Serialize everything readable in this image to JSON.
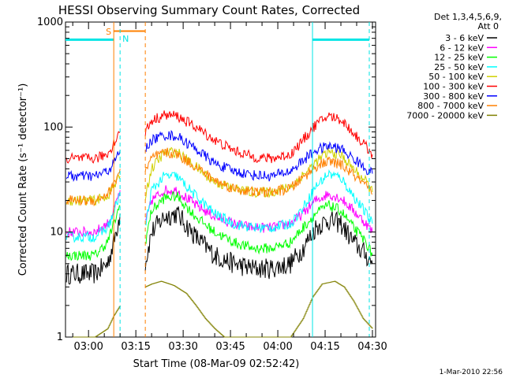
{
  "chart_data": {
    "type": "line",
    "title": "HESSI Observing Summary Count Rates, Corrected",
    "xlabel": "Start Time (08-Mar-09 02:52:42)",
    "ylabel": "Corrected Count Rate (s⁻¹ detector⁻¹)",
    "ylog": true,
    "ylim": [
      1,
      1000
    ],
    "xlim": [
      "02:52:42",
      "04:31:00"
    ],
    "y_tick_labels": [
      "1",
      "10",
      "100",
      "1000"
    ],
    "x_tick_labels": [
      "03:00",
      "03:15",
      "03:30",
      "03:45",
      "04:00",
      "04:15",
      "04:30"
    ],
    "legend_header": [
      "Det 1,3,4,5,6,9,",
      "Att 0"
    ],
    "legend_position": "outside-right",
    "timestamp": "1-Mar-2010 22:56",
    "annotations": [
      {
        "text": "S",
        "color": "#ff8000"
      },
      {
        "text": "N",
        "color": "#00e5e5"
      }
    ],
    "markers": {
      "saa_start": "03:08",
      "saa_end": "03:18",
      "night_1_end": "03:10",
      "night_2_start": "04:11",
      "night_2_end": "04:29",
      "night_level": 680,
      "saa_level": 820
    },
    "gap": [
      "03:10",
      "03:18"
    ],
    "series": [
      {
        "name": "3 - 6 keV",
        "color": "#000000",
        "segments": [
          {
            "x": [
              "02:53",
              "03:02",
              "03:06",
              "03:08",
              "03:10"
            ],
            "y": [
              4,
              4,
              5,
              8,
              15
            ]
          },
          {
            "x": [
              "03:18",
              "03:20",
              "03:24",
              "03:28",
              "03:34",
              "03:40",
              "03:46",
              "03:52",
              "03:58",
              "04:04",
              "04:08",
              "04:12",
              "04:16",
              "04:20",
              "04:24",
              "04:28",
              "04:30"
            ],
            "y": [
              5,
              10,
              14,
              15,
              9,
              6,
              5,
              4.5,
              4.5,
              5,
              7,
              11,
              13,
              12,
              8,
              6,
              5
            ]
          }
        ]
      },
      {
        "name": "6 - 12 keV",
        "color": "#ff00ff",
        "segments": [
          {
            "x": [
              "02:53",
              "03:02",
              "03:06",
              "03:08",
              "03:10"
            ],
            "y": [
              10,
              10,
              12,
              16,
              25
            ]
          },
          {
            "x": [
              "03:18",
              "03:20",
              "03:24",
              "03:28",
              "03:34",
              "03:40",
              "03:46",
              "03:52",
              "03:58",
              "04:04",
              "04:08",
              "04:12",
              "04:16",
              "04:20",
              "04:24",
              "04:28",
              "04:30"
            ],
            "y": [
              12,
              20,
              25,
              25,
              18,
              14,
              12,
              11,
              11,
              12,
              15,
              20,
              23,
              21,
              16,
              12,
              10
            ]
          }
        ]
      },
      {
        "name": "12 - 25 keV",
        "color": "#00ff00",
        "segments": [
          {
            "x": [
              "02:53",
              "03:02",
              "03:06",
              "03:08",
              "03:10"
            ],
            "y": [
              6,
              6,
              8,
              12,
              18
            ]
          },
          {
            "x": [
              "03:18",
              "03:20",
              "03:24",
              "03:28",
              "03:34",
              "03:40",
              "03:46",
              "03:52",
              "03:58",
              "04:04",
              "04:08",
              "04:12",
              "04:16",
              "04:20",
              "04:24",
              "04:28",
              "04:30"
            ],
            "y": [
              8,
              16,
              21,
              22,
              14,
              10,
              8,
              7,
              7,
              8,
              11,
              15,
              18,
              16,
              11,
              8,
              6
            ]
          }
        ]
      },
      {
        "name": "25 - 50 keV",
        "color": "#00ffff",
        "segments": [
          {
            "x": [
              "02:53",
              "03:02",
              "03:06",
              "03:08",
              "03:10"
            ],
            "y": [
              9,
              9,
              11,
              15,
              24
            ]
          },
          {
            "x": [
              "03:18",
              "03:20",
              "03:24",
              "03:28",
              "03:34",
              "03:40",
              "03:46",
              "03:52",
              "03:58",
              "04:04",
              "04:08",
              "04:12",
              "04:16",
              "04:20",
              "04:24",
              "04:28",
              "04:30"
            ],
            "y": [
              11,
              25,
              34,
              34,
              22,
              15,
              12,
              11,
              11,
              12,
              17,
              27,
              36,
              33,
              22,
              15,
              12
            ]
          }
        ]
      },
      {
        "name": "50 - 100 keV",
        "color": "#d0d000",
        "segments": [
          {
            "x": [
              "02:53",
              "03:02",
              "03:06",
              "03:08",
              "03:10"
            ],
            "y": [
              20,
              20,
              22,
              27,
              34
            ]
          },
          {
            "x": [
              "03:18",
              "03:20",
              "03:24",
              "03:28",
              "03:34",
              "03:40",
              "03:46",
              "03:52",
              "03:58",
              "04:04",
              "04:08",
              "04:12",
              "04:16",
              "04:20",
              "04:24",
              "04:28",
              "04:30"
            ],
            "y": [
              22,
              40,
              57,
              58,
              42,
              30,
              26,
              24,
              24,
              27,
              35,
              46,
              58,
              54,
              40,
              30,
              24
            ]
          }
        ]
      },
      {
        "name": "100 - 300 keV",
        "color": "#ff0000",
        "segments": [
          {
            "x": [
              "02:53",
              "03:02",
              "03:06",
              "03:08",
              "03:10"
            ],
            "y": [
              50,
              50,
              55,
              70,
              90
            ]
          },
          {
            "x": [
              "03:18",
              "03:20",
              "03:24",
              "03:28",
              "03:34",
              "03:40",
              "03:46",
              "03:52",
              "03:58",
              "04:04",
              "04:08",
              "04:12",
              "04:16",
              "04:20",
              "04:24",
              "04:28",
              "04:30"
            ],
            "y": [
              90,
              115,
              130,
              128,
              100,
              75,
              60,
              52,
              50,
              55,
              75,
              105,
              128,
              118,
              88,
              65,
              55
            ]
          }
        ]
      },
      {
        "name": "300 - 800 keV",
        "color": "#0000ff",
        "segments": [
          {
            "x": [
              "02:53",
              "03:02",
              "03:06",
              "03:08",
              "03:10"
            ],
            "y": [
              34,
              34,
              38,
              45,
              60
            ]
          },
          {
            "x": [
              "03:18",
              "03:20",
              "03:24",
              "03:28",
              "03:34",
              "03:40",
              "03:46",
              "03:52",
              "03:58",
              "04:04",
              "04:08",
              "04:12",
              "04:16",
              "04:20",
              "04:24",
              "04:28",
              "04:30"
            ],
            "y": [
              60,
              75,
              84,
              82,
              62,
              45,
              38,
              35,
              34,
              38,
              48,
              60,
              66,
              62,
              50,
              40,
              36
            ]
          }
        ]
      },
      {
        "name": "800 - 7000 keV",
        "color": "#ff8000",
        "segments": [
          {
            "x": [
              "02:53",
              "03:02",
              "03:06",
              "03:08",
              "03:10"
            ],
            "y": [
              20,
              20,
              23,
              28,
              40
            ]
          },
          {
            "x": [
              "03:18",
              "03:20",
              "03:24",
              "03:28",
              "03:34",
              "03:40",
              "03:46",
              "03:52",
              "03:58",
              "04:04",
              "04:08",
              "04:12",
              "04:16",
              "04:20",
              "04:24",
              "04:28",
              "04:30"
            ],
            "y": [
              38,
              50,
              57,
              55,
              42,
              31,
              26,
              24,
              24,
              26,
              33,
              42,
              47,
              44,
              35,
              27,
              23
            ]
          }
        ]
      },
      {
        "name": "7000 - 20000 keV",
        "color": "#808000",
        "segments": [
          {
            "x": [
              "02:53",
              "03:02",
              "03:06",
              "03:08",
              "03:10"
            ],
            "y": [
              1,
              1,
              1.2,
              1.6,
              2
            ]
          },
          {
            "x": [
              "03:18",
              "03:20",
              "03:23",
              "03:27",
              "03:31",
              "03:34",
              "03:37",
              "03:40",
              "03:43",
              "03:52",
              "04:04",
              "04:08",
              "04:11",
              "04:14",
              "04:18",
              "04:21",
              "04:24",
              "04:27",
              "04:30"
            ],
            "y": [
              3,
              3.2,
              3.4,
              3.1,
              2.6,
              2,
              1.5,
              1.2,
              1,
              1,
              1,
              1.5,
              2.4,
              3.2,
              3.4,
              3,
              2.2,
              1.5,
              1.2
            ]
          }
        ]
      }
    ]
  }
}
